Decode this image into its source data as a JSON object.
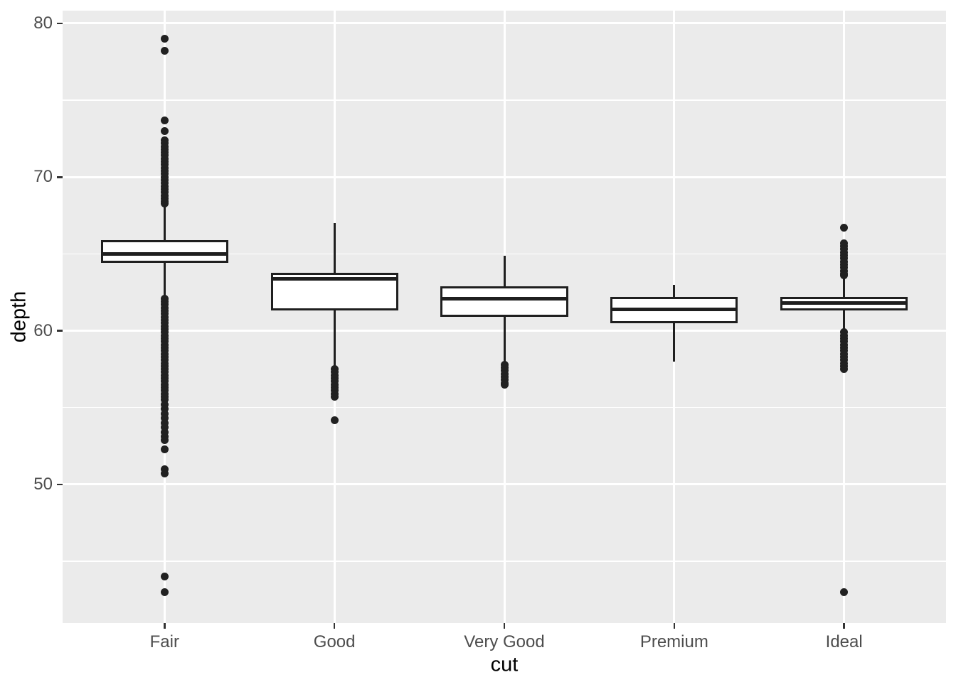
{
  "figure": {
    "background": "#ffffff",
    "panel_background": "#ebebeb",
    "gridline_color": "#ffffff",
    "box_stroke_color": "#1f1f1f",
    "outlier_color": "#212121",
    "tick_mark_color": "#333333",
    "tick_label_color": "#4d4d4d",
    "axis_title_color": "#000000"
  },
  "chart_data": {
    "type": "boxplot",
    "title": "",
    "xlabel": "cut",
    "ylabel": "depth",
    "categories": [
      "Fair",
      "Good",
      "Very Good",
      "Premium",
      "Ideal"
    ],
    "y_axis": {
      "major_ticks": [
        {
          "value": 80,
          "label": "80"
        },
        {
          "value": 70,
          "label": "70"
        },
        {
          "value": 60,
          "label": "60"
        },
        {
          "value": 50,
          "label": "50"
        }
      ],
      "minor_gridlines": [
        75,
        65,
        55,
        45
      ],
      "ylim": [
        41.0,
        80.8
      ],
      "grid": "major+minor horizontal, major vertical at category centers",
      "legend": "none"
    },
    "series": [
      {
        "category": "Fair",
        "whisker_low": 62.3,
        "q1": 64.4,
        "median": 65.0,
        "q3": 65.9,
        "whisker_high": 68.2,
        "outliers": [
          79.0,
          78.2,
          73.7,
          73.0,
          72.4,
          72.2,
          72.0,
          71.8,
          71.6,
          71.4,
          71.2,
          71.0,
          70.8,
          70.6,
          70.4,
          70.2,
          70.0,
          69.8,
          69.6,
          69.4,
          69.2,
          69.0,
          68.8,
          68.6,
          68.4,
          68.3,
          62.1,
          61.9,
          61.7,
          61.5,
          61.3,
          61.1,
          60.9,
          60.7,
          60.5,
          60.3,
          60.1,
          59.9,
          59.7,
          59.5,
          59.3,
          59.1,
          58.9,
          58.7,
          58.5,
          58.3,
          58.1,
          57.9,
          57.7,
          57.5,
          57.3,
          57.1,
          56.9,
          56.7,
          56.5,
          56.3,
          56.1,
          55.9,
          55.7,
          55.5,
          55.2,
          54.9,
          54.6,
          54.3,
          54.0,
          53.7,
          53.4,
          53.1,
          52.9,
          52.3,
          51.0,
          50.7,
          44.0,
          43.0
        ]
      },
      {
        "category": "Good",
        "whisker_low": 57.6,
        "q1": 61.3,
        "median": 63.4,
        "q3": 63.75,
        "whisker_high": 67.0,
        "outliers": [
          57.5,
          57.3,
          57.1,
          56.9,
          56.7,
          56.5,
          56.3,
          56.1,
          55.9,
          55.7,
          54.2
        ]
      },
      {
        "category": "Very Good",
        "whisker_low": 57.9,
        "q1": 60.9,
        "median": 62.1,
        "q3": 62.9,
        "whisker_high": 64.9,
        "outliers": [
          57.8,
          57.6,
          57.4,
          57.2,
          57.0,
          56.8,
          56.6,
          56.5
        ]
      },
      {
        "category": "Premium",
        "whisker_low": 58.0,
        "q1": 60.5,
        "median": 61.4,
        "q3": 62.2,
        "whisker_high": 63.0,
        "outliers": []
      },
      {
        "category": "Ideal",
        "whisker_low": 60.0,
        "q1": 61.3,
        "median": 61.8,
        "q3": 62.2,
        "whisker_high": 63.4,
        "outliers": [
          66.7,
          65.7,
          65.5,
          65.3,
          65.1,
          64.9,
          64.7,
          64.5,
          64.3,
          64.1,
          63.9,
          63.7,
          63.6,
          59.9,
          59.7,
          59.5,
          59.3,
          59.1,
          58.9,
          58.7,
          58.5,
          58.3,
          58.1,
          57.9,
          57.7,
          57.5,
          43.0
        ]
      }
    ]
  }
}
